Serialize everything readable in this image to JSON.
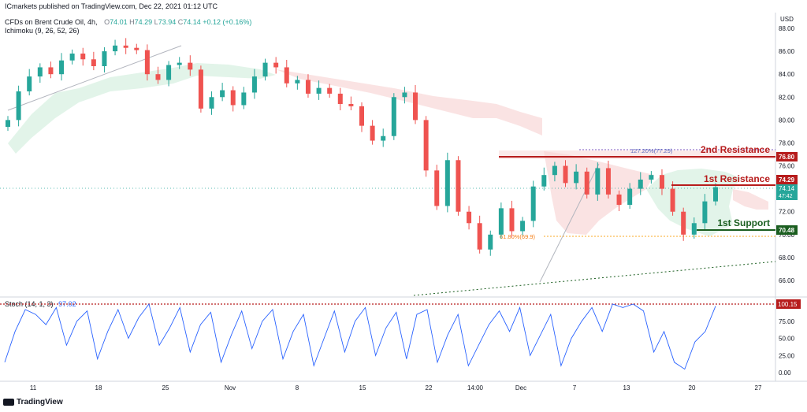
{
  "header": {
    "published": "ICmarkets published on TradingView.com, Dec 22, 2021 01:12 UTC",
    "symbol": "CFDs on Brent Crude Oil, 4h,",
    "o_label": "O",
    "o_value": "74.01",
    "h_label": "H",
    "h_value": "74.29",
    "l_label": "L",
    "l_value": "73.94",
    "c_label": "C",
    "c_value": "74.14",
    "change": "+0.12 (+0.16%)",
    "ichimoku": "Ichimoku (9, 26, 52, 26)"
  },
  "stoch_panel": {
    "label": "Stoch (14, 1, 3)",
    "value": "97.02"
  },
  "footer": {
    "brand": "TradingView"
  },
  "price_axis": {
    "currency": "USD",
    "ticks": [
      "88.00",
      "86.00",
      "84.00",
      "82.00",
      "80.00",
      "78.00",
      "76.00",
      "74.00",
      "72.00",
      "70.00",
      "68.00",
      "66.00"
    ]
  },
  "stoch_axis": {
    "ticks": [
      "75.00",
      "50.00",
      "25.00",
      "0.00"
    ]
  },
  "time_axis": {
    "ticks": [
      "11",
      "18",
      "25",
      "Nov",
      "8",
      "15",
      "22",
      "14:00",
      "Dec",
      "7",
      "13",
      "20",
      "27"
    ]
  },
  "price_labels": {
    "resistance2": "76.80",
    "resistance1": "74.29",
    "current": "74.14",
    "countdown": "47:42",
    "support1": "70.48",
    "stoch_level": "100.15"
  },
  "annotations": {
    "resistance2": "2nd Resistance",
    "resistance1": "1st Resistance",
    "support1": "1st Support",
    "fib_ext": "127.20%(77.29)",
    "fib_ret": "61.80%(69.9)"
  },
  "colors": {
    "resistance": "#b71c1c",
    "support": "#1b5e20",
    "bull": "#26a69a",
    "bear": "#ef5350",
    "stoch": "#2962ff",
    "price_label": "#26a69a"
  },
  "chart_data": [
    {
      "type": "candlestick",
      "title": "CFDs on Brent Crude Oil, 4h",
      "ylim": [
        65.2,
        89
      ],
      "series": [
        {
          "name": "Brent Crude Oil",
          "values": [
            80.0,
            82.5,
            83.8,
            84.6,
            84.0,
            85.2,
            85.8,
            85.3,
            84.7,
            86.0,
            86.5,
            86.3,
            86.1,
            84.0,
            83.5,
            84.8,
            85.0,
            84.4,
            81.0,
            82.0,
            82.6,
            81.3,
            82.4,
            83.8,
            85.0,
            84.6,
            83.2,
            83.5,
            82.3,
            82.8,
            82.3,
            81.4,
            81.2,
            79.5,
            78.2,
            78.6,
            82.0,
            82.4,
            80.0,
            75.6,
            72.5,
            76.5,
            72.0,
            71.0,
            68.7,
            70.0,
            72.3,
            70.3,
            71.2,
            74.2,
            75.2,
            76.0,
            74.5,
            75.5,
            73.5,
            75.8,
            73.5,
            72.6,
            74.0,
            74.8,
            75.2,
            74.0,
            72.0,
            70.0,
            71.0,
            72.9,
            74.14
          ]
        }
      ],
      "levels": [
        {
          "label": "2nd Resistance",
          "value": 76.8
        },
        {
          "label": "1st Resistance",
          "value": 74.29
        },
        {
          "label": "1st Support",
          "value": 70.48
        }
      ],
      "fib": [
        {
          "label": "127.20%(77.29)",
          "value": 77.29
        },
        {
          "label": "61.80%(69.9)",
          "value": 69.9
        }
      ]
    },
    {
      "type": "line",
      "title": "Stoch (14, 1, 3)",
      "ylim": [
        -8,
        106
      ],
      "series": [
        {
          "name": "Stoch",
          "values": [
            15,
            60,
            92,
            85,
            70,
            95,
            40,
            75,
            90,
            20,
            60,
            92,
            50,
            80,
            100,
            40,
            65,
            95,
            30,
            70,
            88,
            15,
            55,
            90,
            35,
            75,
            92,
            20,
            60,
            85,
            10,
            50,
            90,
            30,
            75,
            95,
            25,
            65,
            88,
            20,
            85,
            92,
            15,
            55,
            85,
            10,
            40,
            70,
            90,
            60,
            95,
            25,
            55,
            85,
            10,
            50,
            75,
            95,
            60,
            100,
            95,
            100,
            90,
            30,
            60,
            15,
            5,
            45,
            60,
            97.02
          ]
        }
      ]
    }
  ]
}
